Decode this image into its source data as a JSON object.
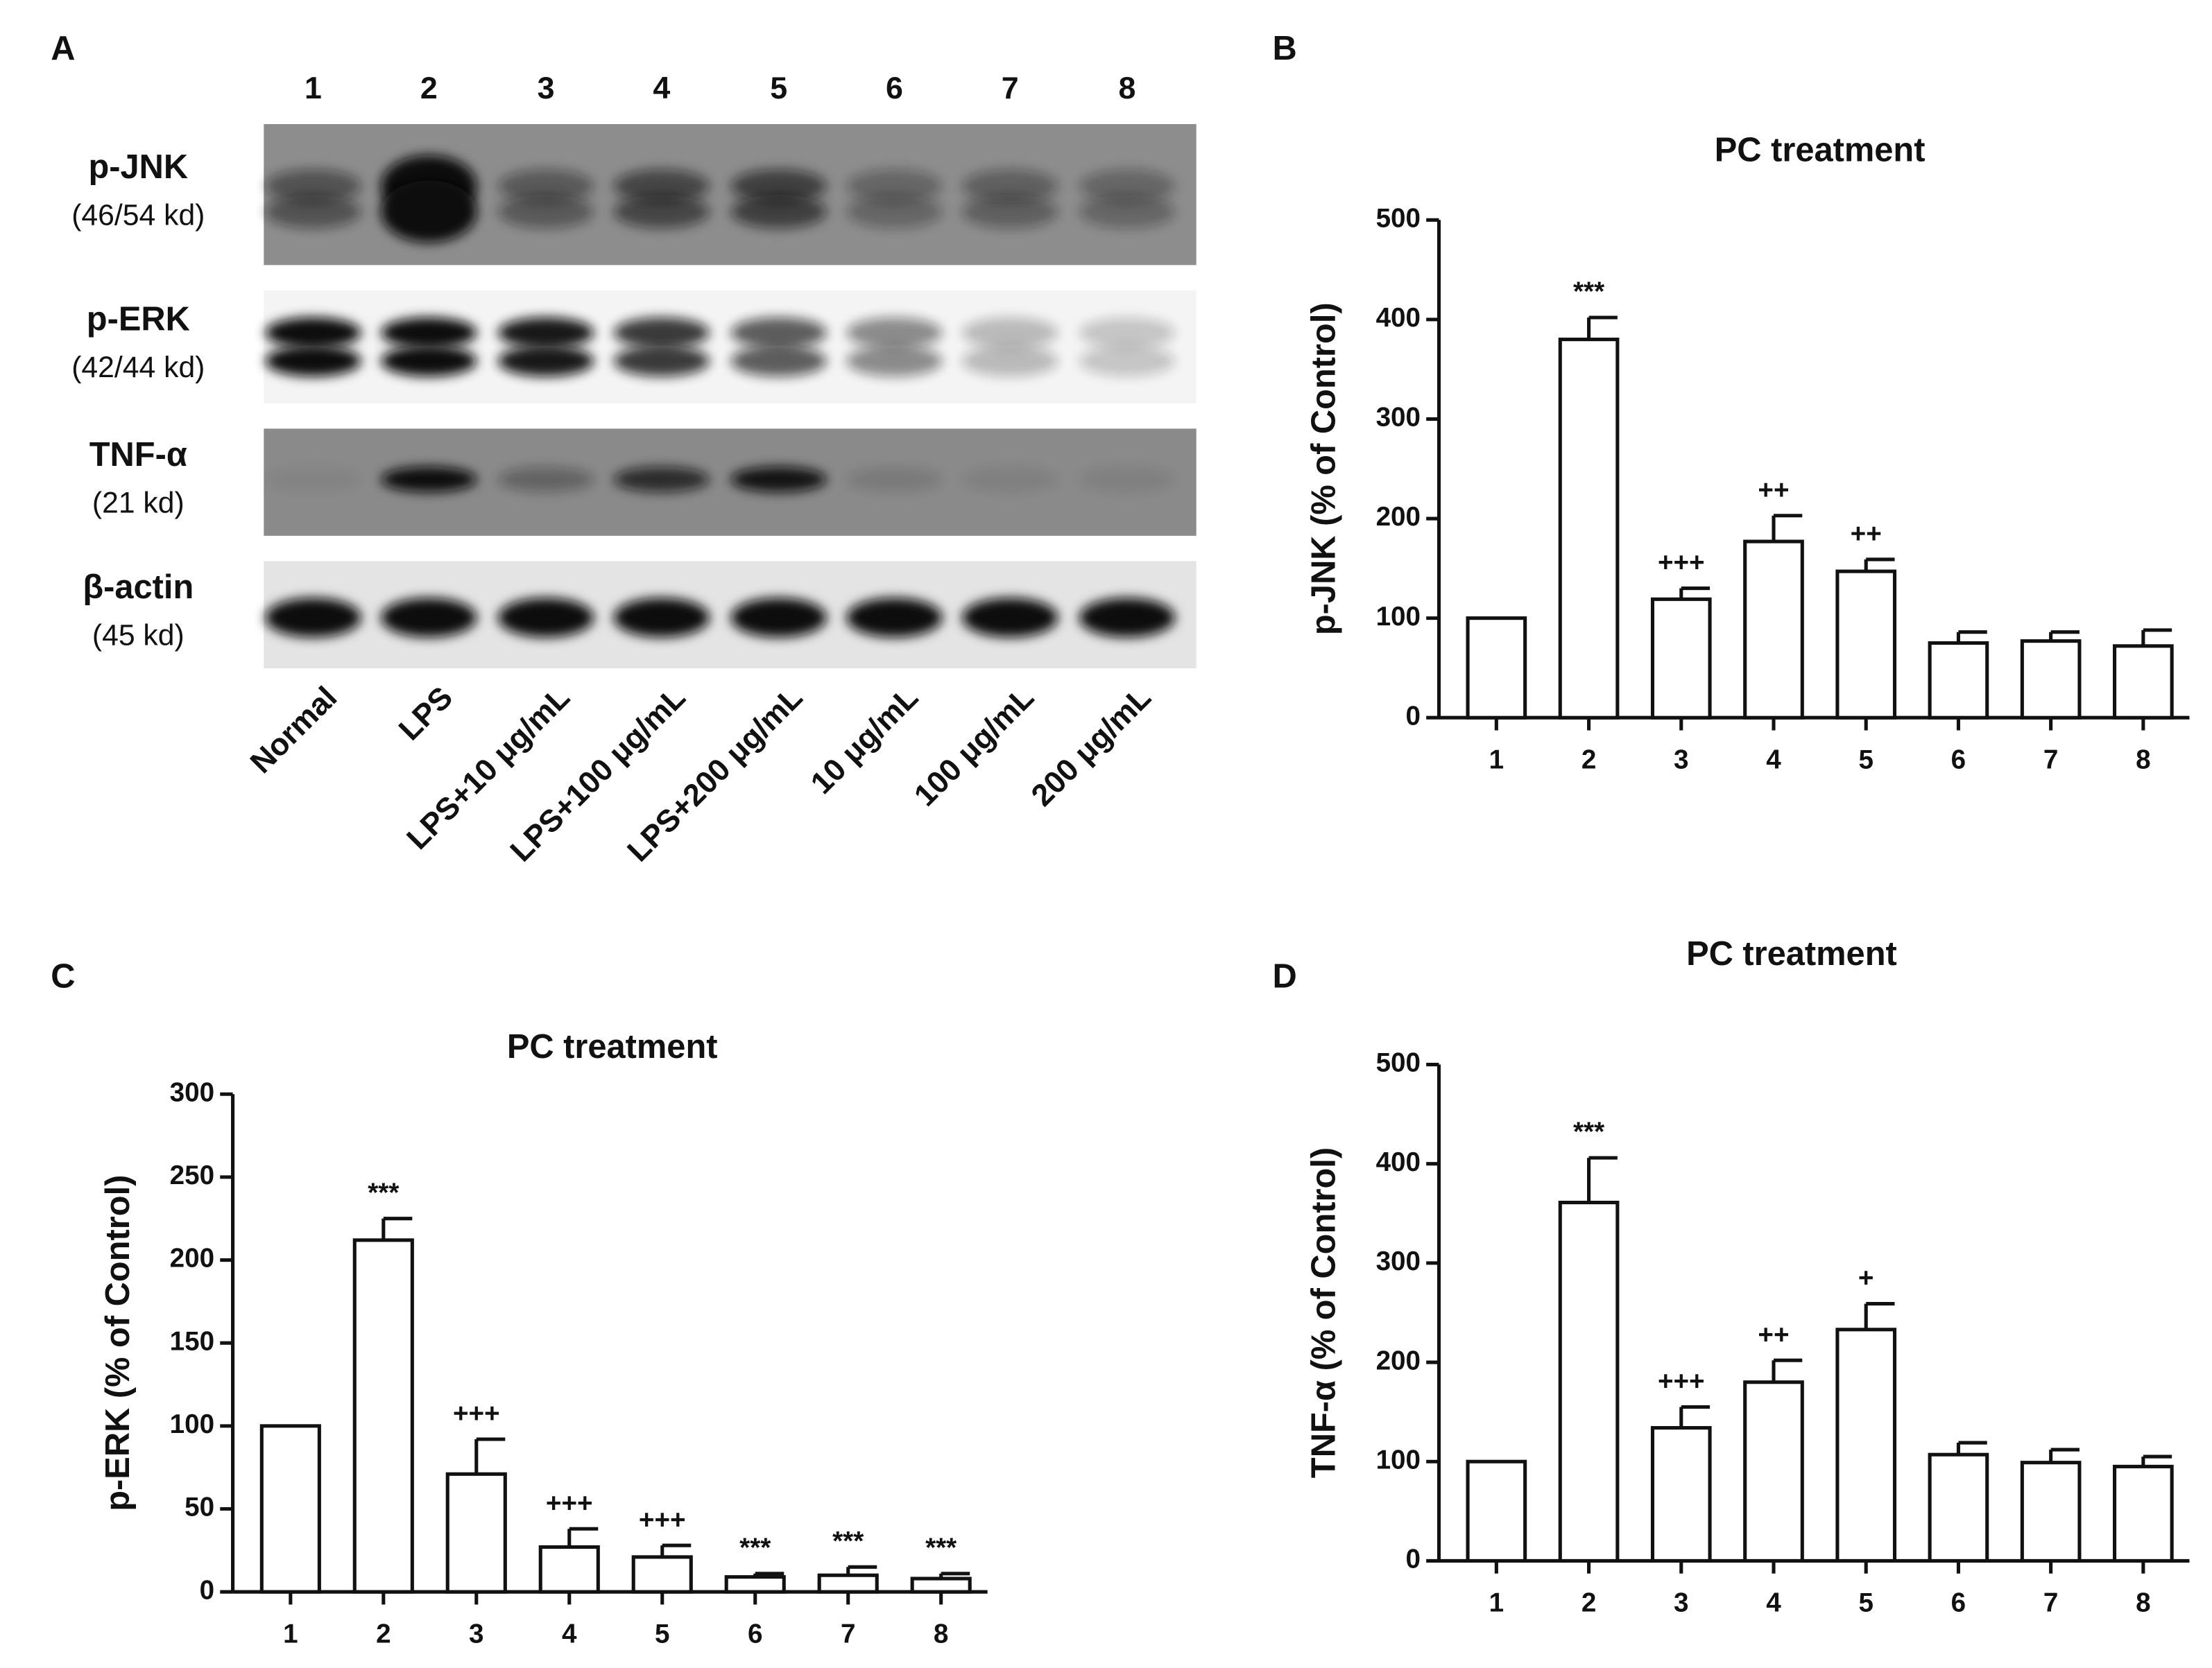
{
  "panel_labels": [
    "A",
    "B",
    "C",
    "D"
  ],
  "blot": {
    "lanes": [
      "1",
      "2",
      "3",
      "4",
      "5",
      "6",
      "7",
      "8"
    ],
    "proteins": [
      {
        "name": "p-JNK",
        "size": "(46/54 kd)"
      },
      {
        "name": "p-ERK",
        "size": "(42/44 kd)"
      },
      {
        "name": "TNF-α",
        "size": "(21 kd)"
      },
      {
        "name": "β-actin",
        "size": "(45 kd)"
      }
    ],
    "treatments": [
      "Normal",
      "LPS",
      "LPS+10 μg/mL",
      "LPS+100 μg/mL",
      "LPS+200 μg/mL",
      "10 μg/mL",
      "100 μg/mL",
      "200 μg/mL"
    ]
  },
  "chart_data": [
    {
      "type": "bar",
      "title": "PC treatment",
      "ylabel": "p-JNK (% of Control)",
      "categories": [
        "1",
        "2",
        "3",
        "4",
        "5",
        "6",
        "7",
        "8"
      ],
      "values": [
        100,
        380,
        119,
        177,
        147,
        75,
        77,
        72
      ],
      "errors": [
        0,
        22,
        11,
        26,
        12,
        11,
        9,
        16
      ],
      "annotations": [
        null,
        "***",
        "+++",
        "++",
        "++",
        null,
        null,
        null
      ],
      "color": "#ffffff",
      "ylim": [
        0,
        500
      ],
      "yticks": [
        0,
        100,
        200,
        300,
        400,
        500
      ]
    },
    {
      "type": "bar",
      "title": "PC treatment",
      "ylabel": "p-ERK (% of Control)",
      "categories": [
        "1",
        "2",
        "3",
        "4",
        "5",
        "6",
        "7",
        "8"
      ],
      "values": [
        100,
        212,
        71,
        27,
        21,
        9,
        10,
        8
      ],
      "errors": [
        0,
        13,
        21,
        11,
        7,
        2,
        5,
        3
      ],
      "annotations": [
        null,
        "***",
        "+++",
        "+++",
        "+++",
        "***",
        "***",
        "***"
      ],
      "color": "#ffffff",
      "ylim": [
        0,
        300
      ],
      "yticks": [
        0,
        50,
        100,
        150,
        200,
        250,
        300
      ]
    },
    {
      "type": "bar",
      "title": "PC treatment",
      "ylabel": "TNF-α (% of Control)",
      "categories": [
        "1",
        "2",
        "3",
        "4",
        "5",
        "6",
        "7",
        "8"
      ],
      "values": [
        100,
        361,
        134,
        180,
        233,
        107,
        99,
        95
      ],
      "errors": [
        0,
        45,
        21,
        22,
        26,
        12,
        13,
        10
      ],
      "annotations": [
        null,
        "***",
        "+++",
        "++",
        "+",
        null,
        null,
        null
      ],
      "color": "#ffffff",
      "ylim": [
        0,
        500
      ],
      "yticks": [
        0,
        100,
        200,
        300,
        400,
        500
      ]
    }
  ]
}
